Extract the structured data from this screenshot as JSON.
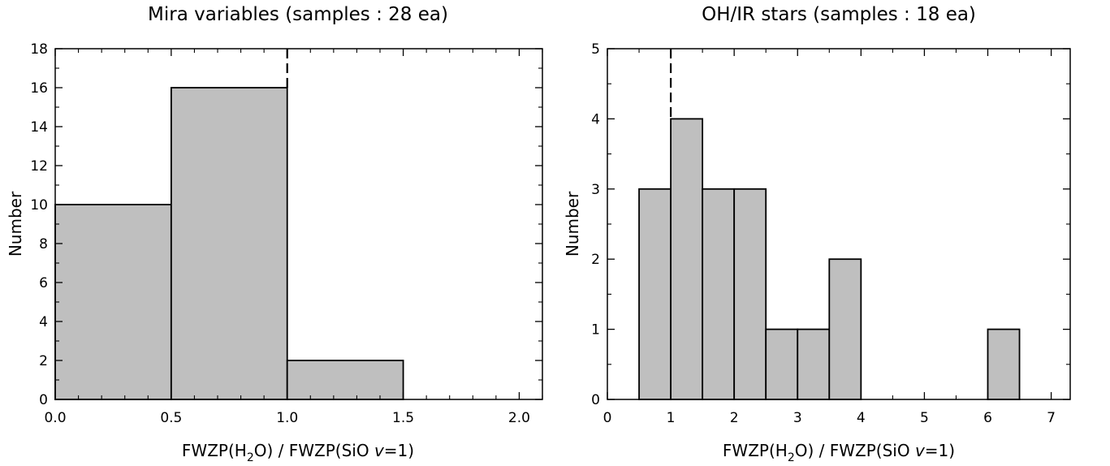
{
  "chart_data": [
    {
      "type": "bar",
      "title": "Mira variables (samples : 28 ea)",
      "xlabel": {
        "prefix": "FWZP(H",
        "sub": "2",
        "mid": "O) / FWZP(SiO ",
        "italic": "v",
        "suffix": "=1)"
      },
      "ylabel": "Number",
      "xlim": [
        0.0,
        2.1
      ],
      "ylim": [
        0,
        18
      ],
      "xticks": [
        0.0,
        0.5,
        1.0,
        1.5,
        2.0
      ],
      "xtick_labels": [
        "0.0",
        "0.5",
        "1.0",
        "1.5",
        "2.0"
      ],
      "xminor": [
        0.1,
        0.2,
        0.3,
        0.4,
        0.6,
        0.7,
        0.8,
        0.9,
        1.1,
        1.2,
        1.3,
        1.4,
        1.6,
        1.7,
        1.8,
        1.9,
        2.1
      ],
      "yticks": [
        0,
        2,
        4,
        6,
        8,
        10,
        12,
        14,
        16,
        18
      ],
      "ytick_labels": [
        "0",
        "2",
        "4",
        "6",
        "8",
        "10",
        "12",
        "14",
        "16",
        "18"
      ],
      "yminor": [
        1,
        3,
        5,
        7,
        9,
        11,
        13,
        15,
        17
      ],
      "bins": [
        {
          "start": 0.0,
          "end": 0.5,
          "count": 10
        },
        {
          "start": 0.5,
          "end": 1.0,
          "count": 16
        },
        {
          "start": 1.0,
          "end": 1.5,
          "count": 2
        }
      ],
      "reference_line_x": 1.0,
      "bar_color": "#bfbfbf",
      "grid": false,
      "legend": "none"
    },
    {
      "type": "bar",
      "title": "OH/IR stars (samples : 18 ea)",
      "xlabel": {
        "prefix": "FWZP(H",
        "sub": "2",
        "mid": "O) / FWZP(SiO ",
        "italic": "v",
        "suffix": "=1)"
      },
      "ylabel": "Number",
      "xlim": [
        0,
        7.3
      ],
      "ylim": [
        0,
        5
      ],
      "xticks": [
        0,
        1,
        2,
        3,
        4,
        5,
        6,
        7
      ],
      "xtick_labels": [
        "0",
        "1",
        "2",
        "3",
        "4",
        "5",
        "6",
        "7"
      ],
      "xminor": [
        0.5,
        1.5,
        2.5,
        3.5,
        4.5,
        5.5,
        6.5
      ],
      "yticks": [
        0,
        1,
        2,
        3,
        4,
        5
      ],
      "ytick_labels": [
        "0",
        "1",
        "2",
        "3",
        "4",
        "5"
      ],
      "yminor": [
        0.5,
        1.5,
        2.5,
        3.5,
        4.5
      ],
      "bins": [
        {
          "start": 0.5,
          "end": 1.0,
          "count": 3
        },
        {
          "start": 1.0,
          "end": 1.5,
          "count": 4
        },
        {
          "start": 1.5,
          "end": 2.0,
          "count": 3
        },
        {
          "start": 2.0,
          "end": 2.5,
          "count": 3
        },
        {
          "start": 2.5,
          "end": 3.0,
          "count": 1
        },
        {
          "start": 3.0,
          "end": 3.5,
          "count": 1
        },
        {
          "start": 3.5,
          "end": 4.0,
          "count": 2
        },
        {
          "start": 6.0,
          "end": 6.5,
          "count": 1
        }
      ],
      "reference_line_x": 1.0,
      "bar_color": "#bfbfbf",
      "grid": false,
      "legend": "none"
    }
  ]
}
